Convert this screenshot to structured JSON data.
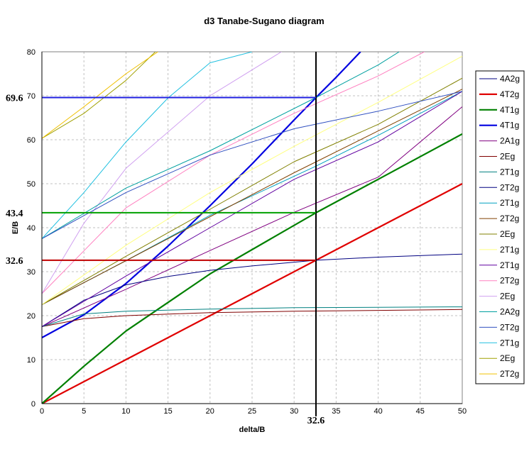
{
  "chart_data": {
    "type": "line",
    "title": "d3 Tanabe-Sugano diagram",
    "xlabel": "delta/B",
    "ylabel": "E/B",
    "xlim": [
      0,
      50
    ],
    "ylim": [
      0,
      80
    ],
    "x_ticks": [
      0,
      5,
      10,
      15,
      20,
      25,
      30,
      35,
      40,
      45,
      50
    ],
    "y_ticks": [
      0,
      10,
      20,
      30,
      40,
      50,
      60,
      70,
      80
    ],
    "grid": true,
    "legend_position": "right",
    "series": [
      {
        "name": "4A2g",
        "color": "#000080",
        "width": 1,
        "x": [
          0,
          50
        ],
        "y": [
          0,
          0
        ]
      },
      {
        "name": "4T2g",
        "color": "#e00000",
        "width": 2.2,
        "x": [
          0,
          10,
          20,
          32.6,
          40,
          50
        ],
        "y": [
          0,
          10,
          20,
          32.6,
          40,
          50
        ]
      },
      {
        "name": "4T1g",
        "color": "#008000",
        "width": 2.2,
        "x": [
          0,
          5,
          10,
          20,
          32.6,
          40,
          50
        ],
        "y": [
          0,
          8.5,
          16.5,
          29.5,
          43.4,
          51,
          61.3
        ]
      },
      {
        "name": "4T1g",
        "color": "#0000e0",
        "width": 2.2,
        "x": [
          0,
          5,
          10,
          15,
          20,
          25,
          30,
          32.6,
          35,
          37.9
        ],
        "y": [
          15,
          20.2,
          27.3,
          35.8,
          45,
          54.5,
          64.5,
          69.6,
          74.2,
          80
        ]
      },
      {
        "name": "2A1g",
        "color": "#800080",
        "width": 1,
        "x": [
          0,
          10,
          20,
          30,
          40,
          50
        ],
        "y": [
          17.5,
          26,
          34.8,
          43.5,
          51.5,
          67.5
        ]
      },
      {
        "name": "2Eg",
        "color": "#800000",
        "width": 1,
        "x": [
          0,
          5,
          10,
          20,
          30,
          40,
          50
        ],
        "y": [
          17.5,
          19.3,
          20,
          20.7,
          21,
          21.2,
          21.4
        ]
      },
      {
        "name": "2T1g",
        "color": "#008080",
        "width": 1,
        "x": [
          0,
          5,
          10,
          20,
          30,
          40,
          50
        ],
        "y": [
          17.5,
          20.4,
          21,
          21.5,
          21.8,
          21.9,
          22
        ]
      },
      {
        "name": "2T2g",
        "color": "#000080",
        "width": 1,
        "x": [
          0,
          5,
          10,
          15,
          20,
          25,
          32.6,
          40,
          50
        ],
        "y": [
          17.5,
          23.5,
          27,
          28.9,
          30.3,
          31.3,
          32.6,
          33.3,
          34
        ]
      },
      {
        "name": "2T1g",
        "color": "#00a0c0",
        "width": 1,
        "x": [
          0,
          10,
          20,
          32.6,
          40,
          50
        ],
        "y": [
          22.5,
          32.5,
          42.8,
          54,
          61,
          71
        ]
      },
      {
        "name": "2T2g",
        "color": "#804000",
        "width": 1,
        "x": [
          0,
          10,
          20,
          30,
          40,
          50
        ],
        "y": [
          22.5,
          32.5,
          42.5,
          52.5,
          62,
          71.5
        ]
      },
      {
        "name": "2Eg",
        "color": "#808000",
        "width": 1,
        "x": [
          0,
          10,
          20,
          30,
          40,
          50
        ],
        "y": [
          22.5,
          33.5,
          44.2,
          55,
          63.5,
          74
        ]
      },
      {
        "name": "2T1g",
        "color": "#ffff80",
        "width": 1,
        "x": [
          0,
          10,
          20,
          30,
          40,
          50
        ],
        "y": [
          22.5,
          36,
          48,
          58.5,
          68.5,
          79
        ]
      },
      {
        "name": "2T1g",
        "color": "#6000a0",
        "width": 1,
        "x": [
          0,
          10,
          20,
          30,
          40,
          50
        ],
        "y": [
          17.5,
          29,
          40,
          51,
          59.5,
          71
        ]
      },
      {
        "name": "2T2g",
        "color": "#ff80c0",
        "width": 1,
        "x": [
          0,
          10,
          20,
          30,
          40,
          45.5
        ],
        "y": [
          25,
          44.5,
          56.5,
          66,
          74.5,
          80
        ]
      },
      {
        "name": "2Eg",
        "color": "#d0a0f0",
        "width": 1,
        "x": [
          0,
          5,
          10,
          20,
          28.5
        ],
        "y": [
          25,
          41,
          53.5,
          70,
          80
        ]
      },
      {
        "name": "2A2g",
        "color": "#00a0a0",
        "width": 1,
        "x": [
          0,
          10,
          20,
          32.6,
          40,
          42.5
        ],
        "y": [
          37.5,
          49,
          57.5,
          69.6,
          77,
          80
        ]
      },
      {
        "name": "2T2g",
        "color": "#3050c0",
        "width": 1,
        "x": [
          0,
          10,
          20,
          30,
          40,
          50
        ],
        "y": [
          37.5,
          48,
          56.5,
          62.5,
          66.5,
          71
        ]
      },
      {
        "name": "2T1g",
        "color": "#20c0e0",
        "width": 1,
        "x": [
          0,
          5,
          10,
          15,
          20,
          25
        ],
        "y": [
          37.5,
          48,
          59.5,
          69.5,
          77.5,
          80
        ]
      },
      {
        "name": "2Eg",
        "color": "#a0a000",
        "width": 1,
        "x": [
          0,
          5,
          10,
          13.5
        ],
        "y": [
          60.3,
          66,
          73.5,
          80
        ]
      },
      {
        "name": "2T2g",
        "color": "#f0c000",
        "width": 1,
        "x": [
          0,
          5,
          10,
          13.8
        ],
        "y": [
          60.3,
          67.5,
          75,
          80
        ]
      }
    ],
    "annotations": [
      {
        "type": "vline",
        "x": 32.6,
        "color": "#000000",
        "label": "32.6"
      },
      {
        "type": "hline",
        "y": 32.6,
        "x_end": 32.6,
        "color": "#c00000",
        "label": "32.6"
      },
      {
        "type": "hline",
        "y": 43.4,
        "x_end": 32.6,
        "color": "#00a000",
        "label": "43.4"
      },
      {
        "type": "hline",
        "y": 69.6,
        "x_end": 32.6,
        "color": "#2020e0",
        "label": "69.6"
      }
    ]
  }
}
